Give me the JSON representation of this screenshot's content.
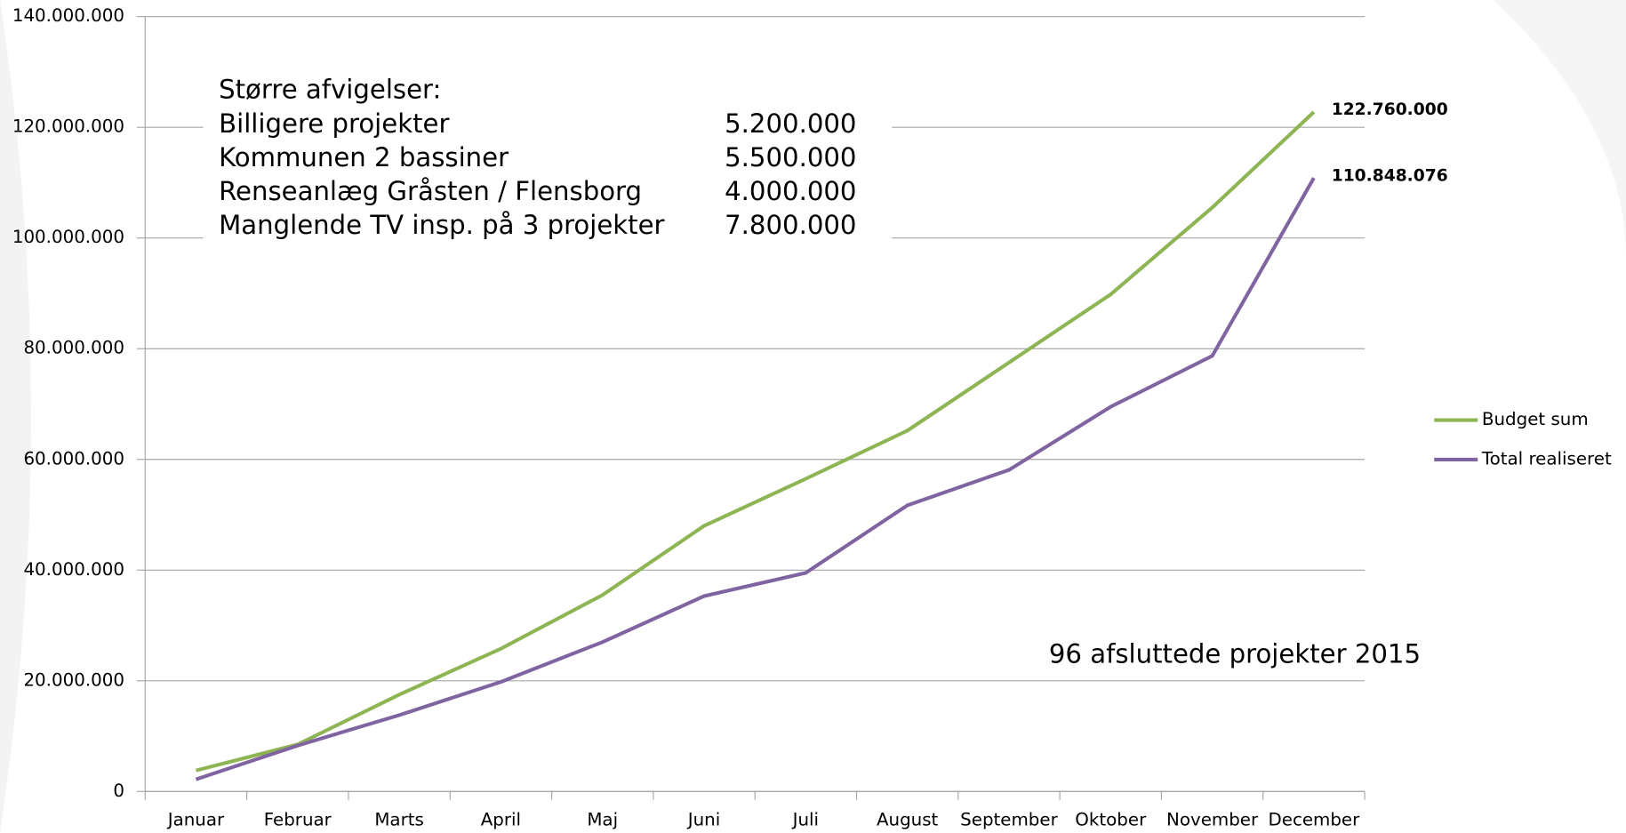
{
  "chart_data": {
    "type": "line",
    "categories": [
      "Januar",
      "Februar",
      "Marts",
      "April",
      "Maj",
      "Juni",
      "Juli",
      "August",
      "September",
      "Oktober",
      "November",
      "December"
    ],
    "series": [
      {
        "name": "Budget sum",
        "color": "#8db553",
        "values": [
          3800000,
          8500000,
          17500000,
          25800000,
          35500000,
          48000000,
          56500000,
          65200000,
          77500000,
          89800000,
          105500000,
          122760000
        ],
        "value_labels": [
          null,
          null,
          null,
          null,
          null,
          null,
          null,
          null,
          null,
          null,
          null,
          "122.760.000"
        ]
      },
      {
        "name": "Total realiseret",
        "color": "#8064a2",
        "values": [
          2200000,
          8300000,
          13800000,
          19800000,
          27000000,
          35300000,
          39500000,
          51700000,
          58100000,
          69500000,
          78700000,
          110848076
        ],
        "value_labels": [
          null,
          null,
          null,
          null,
          null,
          null,
          null,
          null,
          null,
          null,
          null,
          "110.848.076"
        ]
      }
    ],
    "ylim": [
      0,
      140000000
    ],
    "yticks": [
      0,
      {
        "value": 20000000,
        "label": "20.000.000"
      },
      {
        "value": 40000000,
        "label": "40.000.000"
      },
      {
        "value": 60000000,
        "label": "60.000.000"
      },
      {
        "value": 80000000,
        "label": "80.000.000"
      },
      {
        "value": 100000000,
        "label": "100.000.000"
      },
      {
        "value": 120000000,
        "label": "120.000.000"
      },
      {
        "value": 140000000,
        "label": "140.000.000"
      }
    ],
    "grid": true,
    "legend": "right",
    "annotations": {
      "box_title": "Større afvigelser:",
      "rows": [
        {
          "label": "Billigere projekter",
          "amount": "5.200.000"
        },
        {
          "label": "Kommunen 2 bassiner",
          "amount": "5.500.000"
        },
        {
          "label": "Renseanlæg Gråsten / Flensborg",
          "amount": "4.000.000"
        },
        {
          "label": "Manglende TV insp. på 3 projekter",
          "amount": "7.800.000"
        }
      ],
      "note": "96 afsluttede projekter 2015"
    }
  }
}
